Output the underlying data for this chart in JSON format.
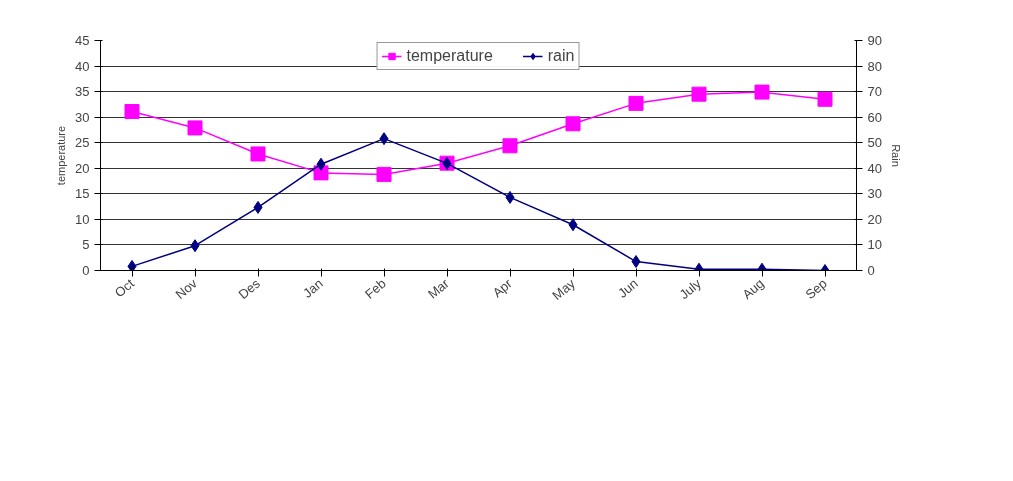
{
  "chart_data": {
    "type": "line",
    "ylabel": "temperature",
    "y2label": "Rain",
    "categories": [
      "Oct",
      "Nov",
      "Des",
      "Jan",
      "Feb",
      "Mar",
      "Apr",
      "May",
      "Jun",
      "July",
      "Aug",
      "Sep"
    ],
    "series": [
      {
        "name": "temperature",
        "color": "#ff00ff",
        "marker": "square",
        "values": [
          31.1,
          27.9,
          22.8,
          19.1,
          18.8,
          21,
          24.4,
          28.7,
          32.7,
          34.5,
          34.9,
          33.5
        ]
      },
      {
        "name": "rain",
        "color": "#000080",
        "marker": "diamond",
        "axis": "y2",
        "values": [
          1.6,
          9.7,
          24.7,
          41.6,
          51.6,
          41.9,
          28.6,
          17.9,
          3.5,
          0.5,
          0.5,
          0
        ]
      }
    ],
    "ylim": [
      0,
      45
    ],
    "yticks": [
      0,
      5,
      10,
      15,
      20,
      25,
      30,
      35,
      40,
      45
    ],
    "y2lim": [
      0,
      90
    ],
    "y2ticks": [
      0,
      10,
      20,
      30,
      40,
      50,
      60,
      70,
      80,
      90
    ],
    "grid": "y",
    "legend": "top"
  }
}
